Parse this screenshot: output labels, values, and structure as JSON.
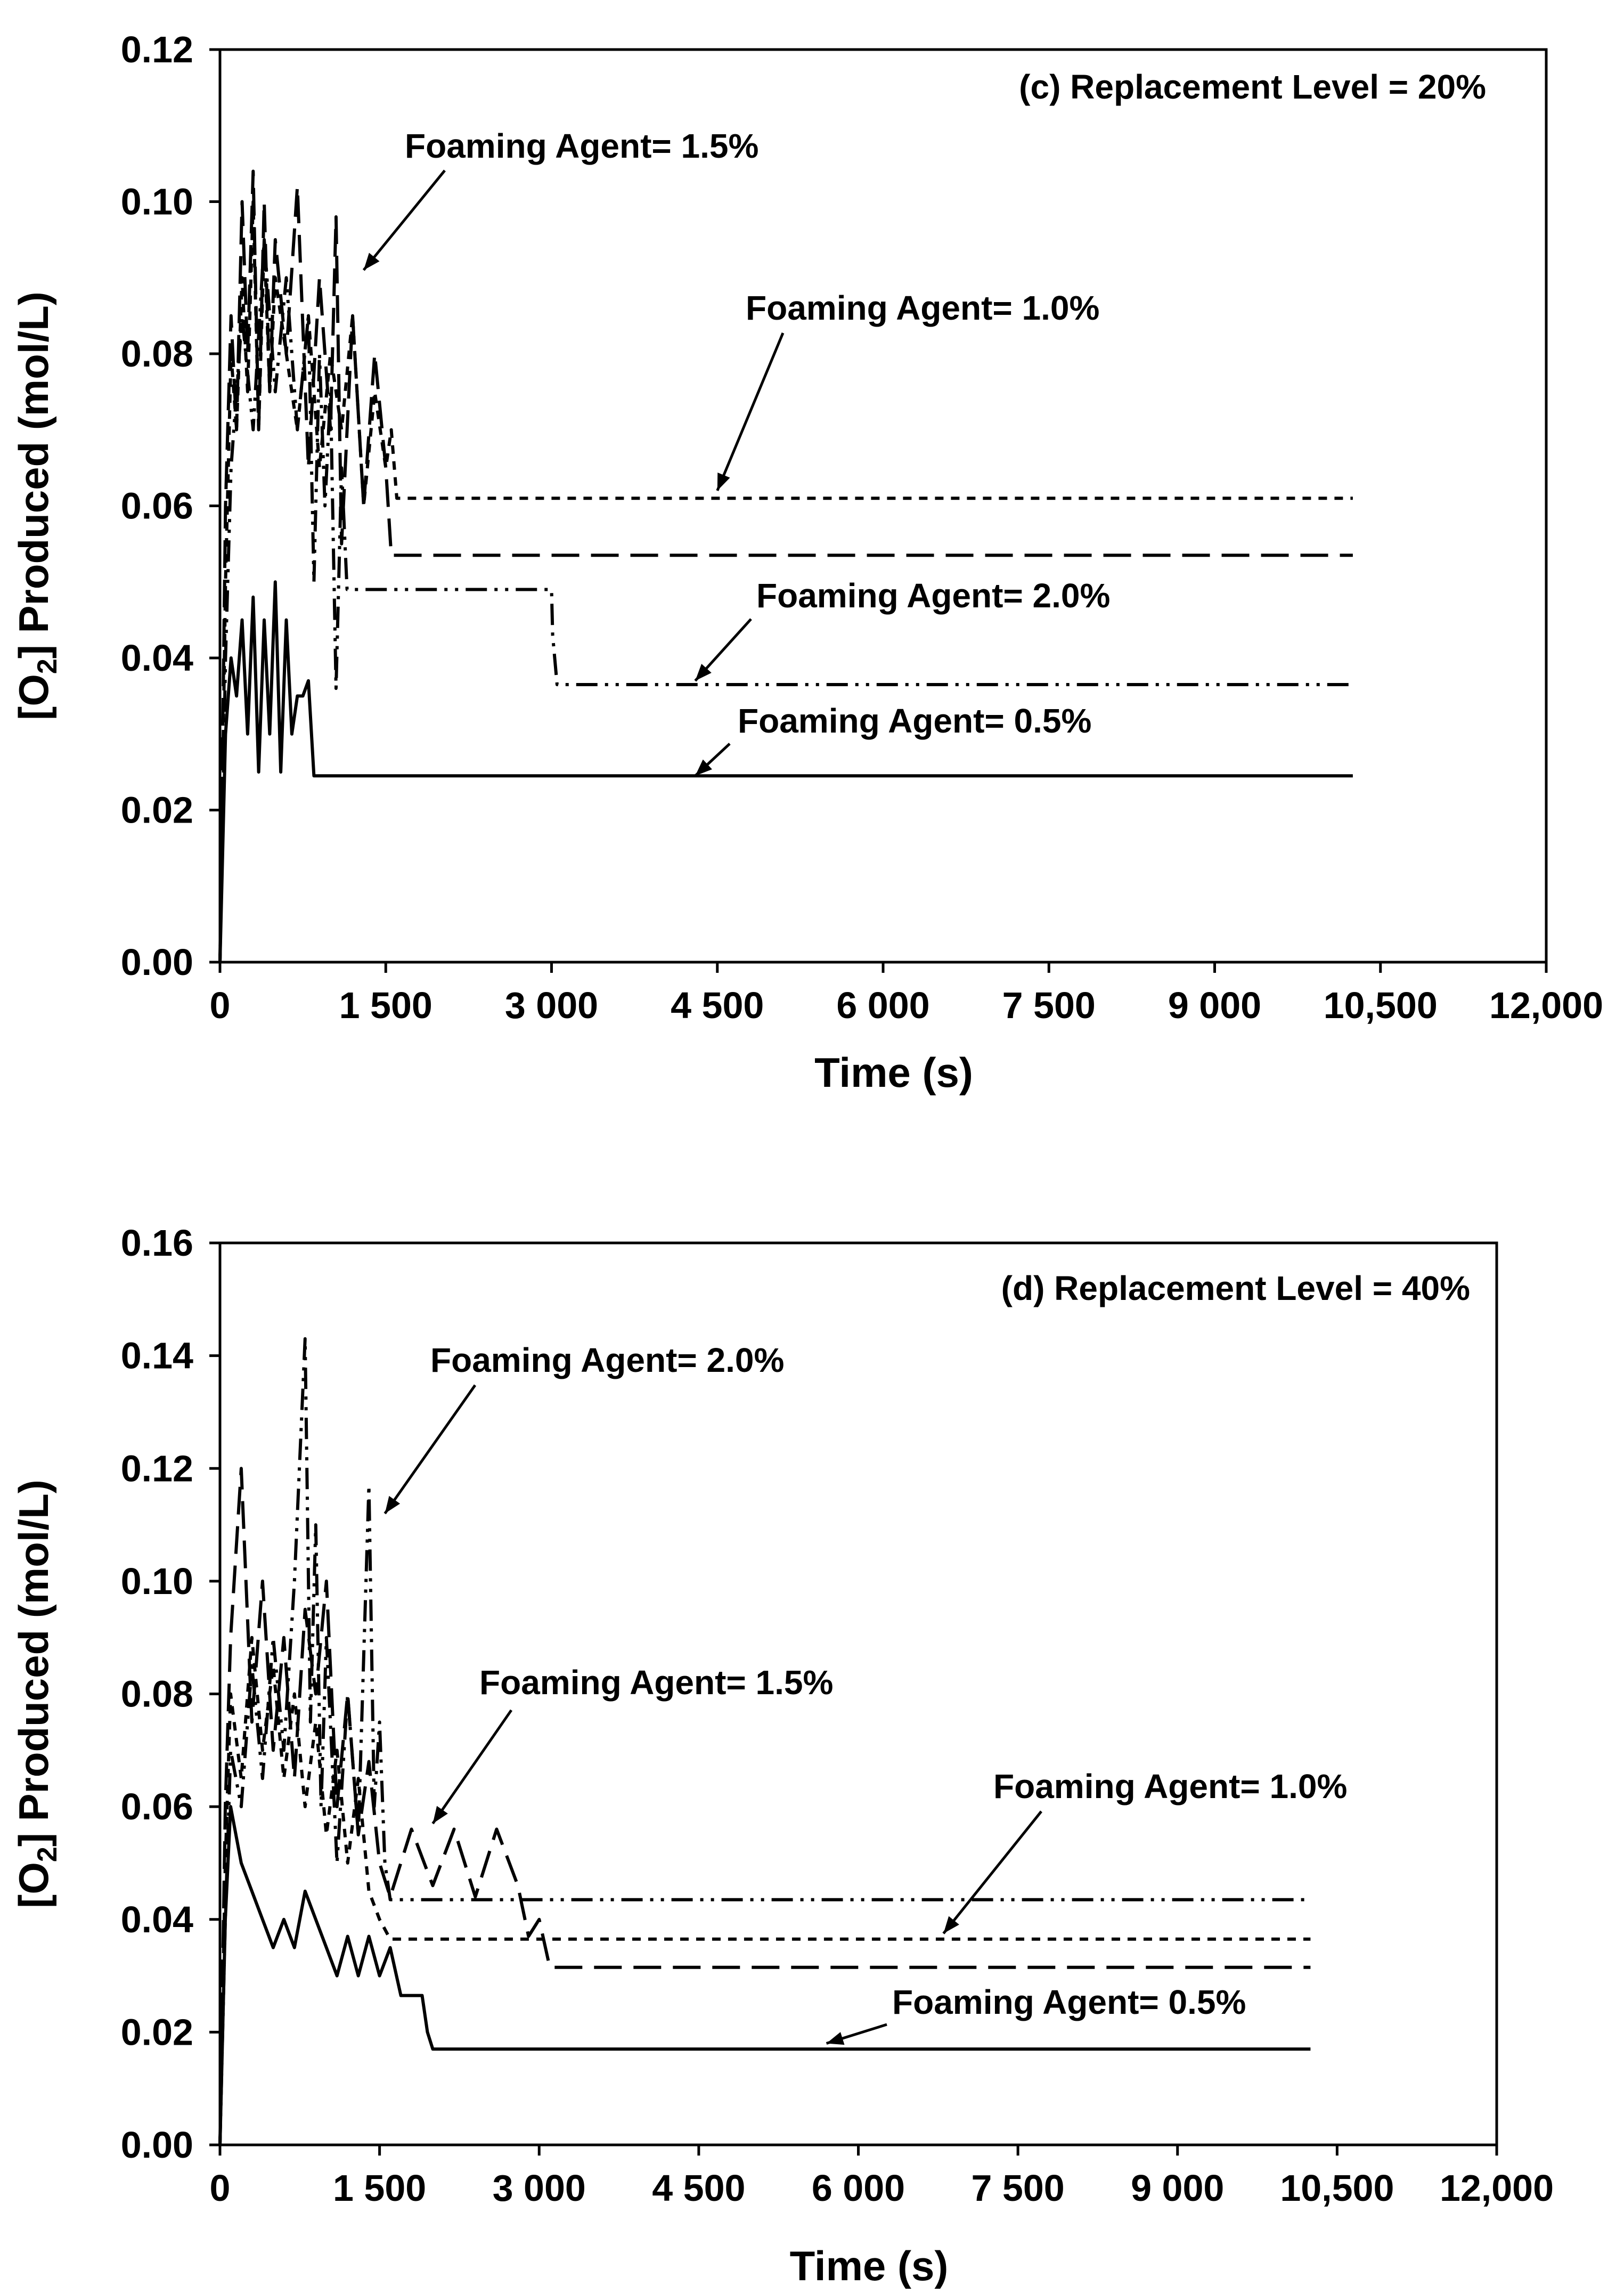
{
  "chart_data": [
    {
      "type": "line",
      "title": "(c) Replacement Level = 20%",
      "xlabel": "Time (s)",
      "ylabel": {
        "prefix": "[O",
        "subscript": "2",
        "suffix": "] Produced (mol/L)"
      },
      "xlim": [
        0,
        12000
      ],
      "ylim": [
        0,
        0.12
      ],
      "x_ticks": [
        0,
        1500,
        3000,
        4500,
        6000,
        7500,
        9000,
        10500,
        12000
      ],
      "x_tick_labels": [
        "0",
        "1 500",
        "3 000",
        "4 500",
        "6 000",
        "7 500",
        "9 000",
        "10,500",
        "12,000"
      ],
      "y_ticks": [
        0,
        0.02,
        0.04,
        0.06,
        0.08,
        0.1,
        0.12
      ],
      "y_tick_labels": [
        "0.00",
        "0.02",
        "0.04",
        "0.06",
        "0.08",
        "0.10",
        "0.12"
      ],
      "grid": false,
      "series": [
        {
          "name": "Foaming Agent= 0.5%",
          "dash": "solid",
          "x": [
            0,
            50,
            100,
            150,
            200,
            250,
            300,
            350,
            400,
            450,
            500,
            550,
            600,
            650,
            700,
            750,
            800,
            850,
            10250
          ],
          "y": [
            0.0,
            0.03,
            0.04,
            0.035,
            0.045,
            0.03,
            0.048,
            0.025,
            0.045,
            0.03,
            0.05,
            0.025,
            0.045,
            0.03,
            0.035,
            0.035,
            0.037,
            0.0245,
            0.0245
          ]
        },
        {
          "name": "Foaming Agent= 1.0%",
          "dash": "short-dash",
          "x": [
            0,
            50,
            100,
            150,
            200,
            250,
            300,
            350,
            400,
            450,
            500,
            600,
            700,
            800,
            900,
            1000,
            1100,
            1200,
            1300,
            1400,
            1500,
            1550,
            1600,
            10250
          ],
          "y": [
            0.0,
            0.05,
            0.08,
            0.07,
            0.09,
            0.075,
            0.1,
            0.07,
            0.095,
            0.075,
            0.09,
            0.08,
            0.07,
            0.085,
            0.065,
            0.08,
            0.07,
            0.085,
            0.06,
            0.075,
            0.065,
            0.07,
            0.061,
            0.061
          ]
        },
        {
          "name": "Foaming Agent= 1.5%",
          "dash": "long-dash",
          "x": [
            0,
            50,
            100,
            150,
            200,
            250,
            300,
            350,
            400,
            450,
            500,
            600,
            700,
            800,
            900,
            1000,
            1050,
            1100,
            1200,
            1300,
            1400,
            1500,
            1550,
            10250
          ],
          "y": [
            0.0,
            0.06,
            0.085,
            0.07,
            0.1,
            0.08,
            0.104,
            0.07,
            0.1,
            0.075,
            0.095,
            0.08,
            0.102,
            0.065,
            0.09,
            0.07,
            0.098,
            0.055,
            0.085,
            0.06,
            0.08,
            0.065,
            0.0535,
            0.0535
          ]
        },
        {
          "name": "Foaming Agent= 2.0%",
          "dash": "dash-dot-dot",
          "x": [
            0,
            50,
            100,
            200,
            300,
            400,
            500,
            600,
            700,
            800,
            850,
            900,
            950,
            1000,
            1050,
            1100,
            1150,
            3000,
            3010,
            3050,
            10250
          ],
          "y": [
            0.0,
            0.04,
            0.065,
            0.085,
            0.07,
            0.095,
            0.075,
            0.09,
            0.07,
            0.085,
            0.05,
            0.08,
            0.06,
            0.075,
            0.036,
            0.065,
            0.049,
            0.049,
            0.043,
            0.0365,
            0.0365
          ]
        }
      ],
      "annotations": [
        {
          "text": "Foaming Agent= 1.5%",
          "series": "Foaming Agent= 1.5%",
          "target": [
            1300,
            0.091
          ]
        },
        {
          "text": "Foaming Agent= 1.0%",
          "series": "Foaming Agent= 1.0%",
          "target": [
            4500,
            0.062
          ]
        },
        {
          "text": "Foaming Agent= 2.0%",
          "series": "Foaming Agent= 2.0%",
          "target": [
            4300,
            0.037
          ]
        },
        {
          "text": "Foaming Agent= 0.5%",
          "series": "Foaming Agent= 0.5%",
          "target": [
            4300,
            0.0245
          ]
        }
      ]
    },
    {
      "type": "line",
      "title": "(d) Replacement Level = 40%",
      "xlabel": "Time (s)",
      "ylabel": {
        "prefix": "[O",
        "subscript": "2",
        "suffix": "] Produced (mol/L)"
      },
      "xlim": [
        0,
        12000
      ],
      "ylim": [
        0,
        0.16
      ],
      "x_ticks": [
        0,
        1500,
        3000,
        4500,
        6000,
        7500,
        9000,
        10500,
        12000
      ],
      "x_tick_labels": [
        "0",
        "1 500",
        "3 000",
        "4 500",
        "6 000",
        "7 500",
        "9 000",
        "10,500",
        "12,000"
      ],
      "y_ticks": [
        0,
        0.02,
        0.04,
        0.06,
        0.08,
        0.1,
        0.12,
        0.14,
        0.16
      ],
      "y_tick_labels": [
        "0.00",
        "0.02",
        "0.04",
        "0.06",
        "0.08",
        "0.10",
        "0.12",
        "0.14",
        "0.16"
      ],
      "grid": false,
      "series": [
        {
          "name": "Foaming Agent= 0.5%",
          "dash": "solid",
          "x": [
            0,
            50,
            100,
            200,
            300,
            400,
            500,
            600,
            700,
            800,
            900,
            1000,
            1100,
            1200,
            1300,
            1400,
            1500,
            1600,
            1700,
            1800,
            1900,
            1950,
            2000,
            2100,
            10250
          ],
          "y": [
            0.0,
            0.04,
            0.06,
            0.05,
            0.045,
            0.04,
            0.035,
            0.04,
            0.035,
            0.045,
            0.04,
            0.035,
            0.03,
            0.037,
            0.03,
            0.037,
            0.03,
            0.035,
            0.0265,
            0.0265,
            0.0265,
            0.02,
            0.017,
            0.017,
            0.017
          ]
        },
        {
          "name": "Foaming Agent= 1.0%",
          "dash": "short-dash",
          "x": [
            0,
            50,
            100,
            200,
            300,
            400,
            500,
            600,
            700,
            800,
            900,
            1000,
            1100,
            1200,
            1300,
            1400,
            1500,
            1600,
            10250
          ],
          "y": [
            0.0,
            0.05,
            0.08,
            0.065,
            0.09,
            0.07,
            0.085,
            0.065,
            0.08,
            0.06,
            0.075,
            0.055,
            0.07,
            0.05,
            0.065,
            0.045,
            0.04,
            0.0365,
            0.0365
          ]
        },
        {
          "name": "Foaming Agent= 1.5%",
          "dash": "long-dash",
          "x": [
            0,
            50,
            100,
            200,
            300,
            400,
            500,
            600,
            700,
            800,
            900,
            1000,
            1100,
            1200,
            1300,
            1400,
            1500,
            1600,
            1800,
            2000,
            2200,
            2400,
            2600,
            2800,
            2900,
            3000,
            3100,
            10250
          ],
          "y": [
            0.0,
            0.06,
            0.09,
            0.12,
            0.075,
            0.1,
            0.07,
            0.09,
            0.065,
            0.095,
            0.08,
            0.1,
            0.06,
            0.08,
            0.055,
            0.068,
            0.05,
            0.044,
            0.056,
            0.046,
            0.056,
            0.044,
            0.056,
            0.046,
            0.037,
            0.04,
            0.0315,
            0.0315
          ]
        },
        {
          "name": "Foaming Agent= 2.0%",
          "dash": "dash-dot-dot",
          "x": [
            0,
            50,
            100,
            200,
            300,
            400,
            500,
            600,
            700,
            800,
            850,
            900,
            950,
            1000,
            1100,
            1200,
            1300,
            1400,
            1450,
            1500,
            1550,
            1600,
            10250
          ],
          "y": [
            0.0,
            0.04,
            0.07,
            0.06,
            0.085,
            0.065,
            0.09,
            0.07,
            0.1,
            0.143,
            0.075,
            0.11,
            0.06,
            0.09,
            0.05,
            0.08,
            0.055,
            0.117,
            0.06,
            0.075,
            0.05,
            0.0435,
            0.0435
          ]
        }
      ],
      "annotations": [
        {
          "text": "Foaming Agent= 2.0%",
          "series": "Foaming Agent= 2.0%",
          "target": [
            1550,
            0.112
          ]
        },
        {
          "text": "Foaming Agent= 1.5%",
          "series": "Foaming Agent= 1.5%",
          "target": [
            2000,
            0.057
          ]
        },
        {
          "text": "Foaming Agent= 1.0%",
          "series": "Foaming Agent= 1.0%",
          "target": [
            6800,
            0.0375
          ]
        },
        {
          "text": "Foaming Agent= 0.5%",
          "series": "Foaming Agent= 0.5%",
          "target": [
            5700,
            0.018
          ]
        }
      ]
    }
  ]
}
